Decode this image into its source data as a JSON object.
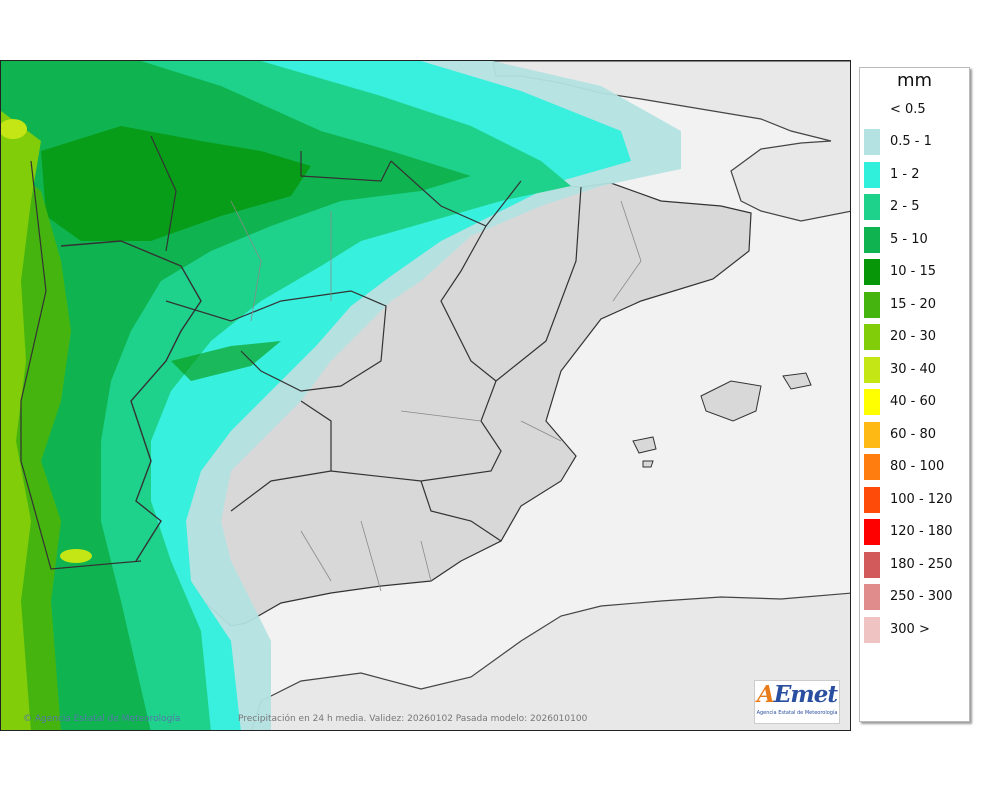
{
  "map": {
    "caption": "Precipitación en 24 h media. Validez: 20260102 Pasada modelo: 2026010100",
    "credit": "© Agencia Estatal de Meteorología",
    "logo": {
      "prefix": "A",
      "suffix": "Emet",
      "subtitle": "Agencia Estatal de Meteorología"
    }
  },
  "legend": {
    "title": "mm",
    "first_label": "< 0.5",
    "classes": [
      {
        "label": "0.5 - 1",
        "color": "#b4e2e2"
      },
      {
        "label": "1 - 2",
        "color": "#30f0dc"
      },
      {
        "label": "2 - 5",
        "color": "#1ed28c"
      },
      {
        "label": "5 - 10",
        "color": "#0fb450"
      },
      {
        "label": "10 - 15",
        "color": "#079607"
      },
      {
        "label": "15 - 20",
        "color": "#46b40f"
      },
      {
        "label": "20 - 30",
        "color": "#82cd0a"
      },
      {
        "label": "30 - 40",
        "color": "#c3e614"
      },
      {
        "label": "40 - 60",
        "color": "#ffff00"
      },
      {
        "label": "60 - 80",
        "color": "#ffb914"
      },
      {
        "label": "80 - 100",
        "color": "#ff7d0f"
      },
      {
        "label": "100 - 120",
        "color": "#ff4b0a"
      },
      {
        "label": "120 - 180",
        "color": "#ff0000"
      },
      {
        "label": "180 - 250",
        "color": "#d25a5a"
      },
      {
        "label": "250 - 300",
        "color": "#e08c8c"
      },
      {
        "label": "300 >",
        "color": "#f0c3c3"
      }
    ]
  }
}
